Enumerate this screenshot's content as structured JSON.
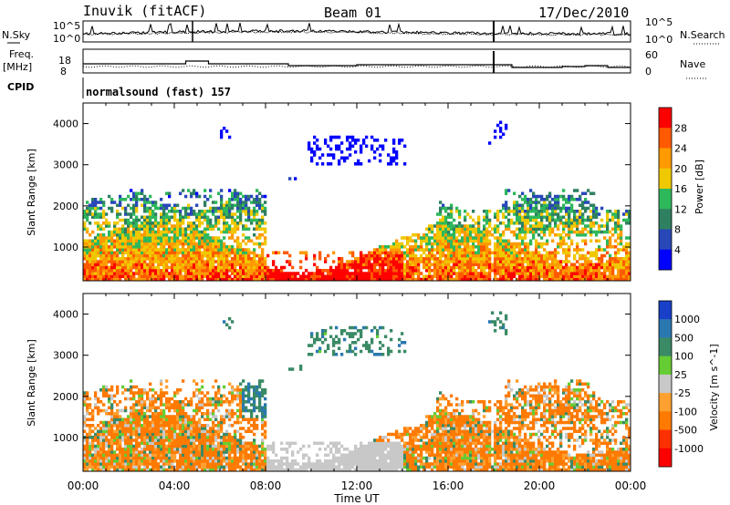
{
  "header": {
    "station": "Inuvik (fitACF)",
    "beam": "Beam 01",
    "date": "17/Dec/2010"
  },
  "labels": {
    "nsky": "N.Sky",
    "nsearch": "N.Search",
    "freq_line1": "Freq.",
    "freq_line2": "[MHz]",
    "nave": "Nave",
    "cpid": "CPID",
    "cpid_value": "normalsound (fast) 157"
  },
  "small_axes": {
    "noise_left": [
      "10^5",
      "10^0"
    ],
    "noise_right": [
      "10^5",
      "10^0"
    ],
    "freq_left": [
      "18",
      "8"
    ],
    "nave_right": [
      "60",
      "0"
    ]
  },
  "chart_data": [
    {
      "type": "heatmap",
      "ylabel": "Slant Range [km]",
      "yticks": [
        1000,
        2000,
        3000,
        4000
      ],
      "ylim": [
        180,
        4500
      ],
      "xlim_hours": [
        0,
        24
      ],
      "colorbar": {
        "label": "Power [dB]",
        "ticks": [
          "28",
          "24",
          "20",
          "16",
          "12",
          "8",
          "4"
        ],
        "colors": [
          "#ff0000",
          "#ff5a00",
          "#ff9a00",
          "#f0c800",
          "#2eb85c",
          "#2f8060",
          "#2848b8",
          "#0000ff"
        ]
      }
    },
    {
      "type": "heatmap",
      "ylabel": "Slant Range [km]",
      "yticks": [
        1000,
        2000,
        3000,
        4000
      ],
      "ylim": [
        180,
        4500
      ],
      "xlim_hours": [
        0,
        24
      ],
      "xlabel": "Time UT",
      "xticks": [
        "00:00",
        "04:00",
        "08:00",
        "12:00",
        "16:00",
        "20:00",
        "00:00"
      ],
      "colorbar": {
        "label": "Velocity [m s^-1]",
        "ticks": [
          "1000",
          "500",
          "100",
          "25",
          "-25",
          "-100",
          "-500",
          "-1000"
        ],
        "colors": [
          "#1840c8",
          "#2a78b0",
          "#3a8a66",
          "#66cc33",
          "#c8c8c8",
          "#ffa030",
          "#ff7a00",
          "#ff3000",
          "#ff0000"
        ]
      }
    }
  ]
}
